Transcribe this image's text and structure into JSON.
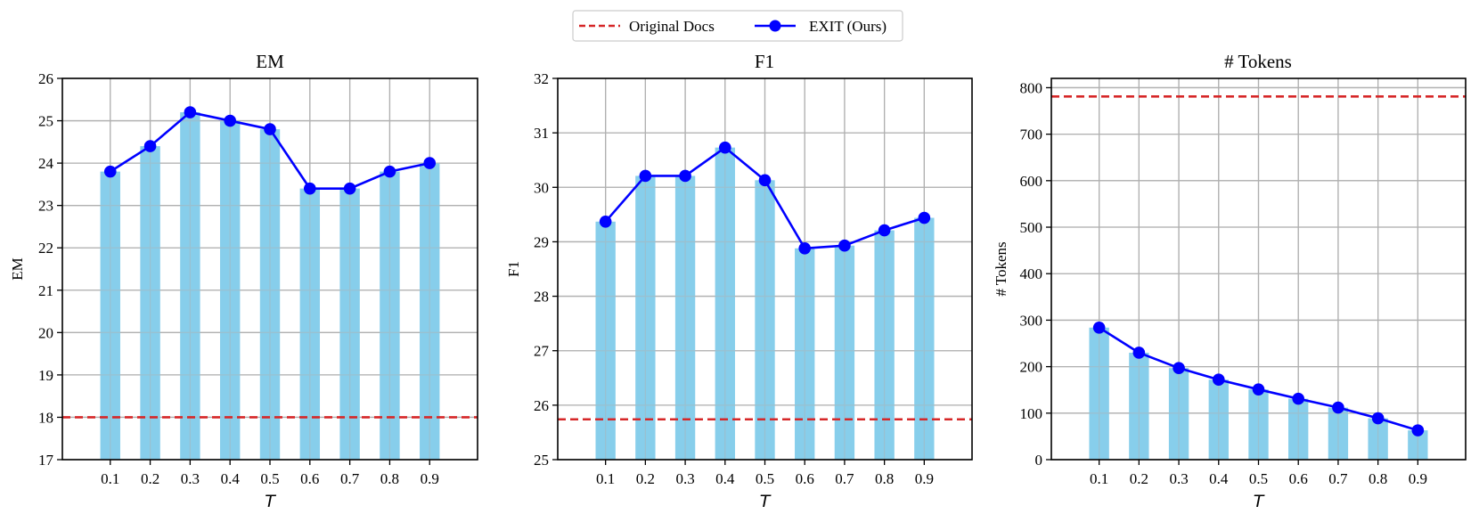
{
  "legend": {
    "entries": [
      {
        "label": "Original Docs",
        "style": "dashed",
        "color": "#d62728"
      },
      {
        "label": "EXIT (Ours)",
        "style": "line-marker",
        "color": "#0000ff"
      }
    ]
  },
  "colors": {
    "bar": "#87ceeb",
    "line": "#0000ff",
    "baseline": "#d62728",
    "grid": "#b0b0b0"
  },
  "chart_data": [
    {
      "type": "bar",
      "title": "EM",
      "xlabel": "T",
      "ylabel": "EM",
      "categories": [
        "0.1",
        "0.2",
        "0.3",
        "0.4",
        "0.5",
        "0.6",
        "0.7",
        "0.8",
        "0.9"
      ],
      "ylim": [
        17,
        26
      ],
      "yticks": [
        "17",
        "18",
        "19",
        "20",
        "21",
        "22",
        "23",
        "24",
        "25",
        "26"
      ],
      "grid": true,
      "series": [
        {
          "name": "EXIT (Ours)",
          "type": "bar+line",
          "values": [
            23.8,
            24.4,
            25.2,
            25.0,
            24.8,
            23.4,
            23.4,
            23.8,
            24.0
          ]
        },
        {
          "name": "Original Docs",
          "type": "hline",
          "value": 18.0
        }
      ]
    },
    {
      "type": "bar",
      "title": "F1",
      "xlabel": "T",
      "ylabel": "F1",
      "categories": [
        "0.1",
        "0.2",
        "0.3",
        "0.4",
        "0.5",
        "0.6",
        "0.7",
        "0.8",
        "0.9"
      ],
      "ylim": [
        25,
        32
      ],
      "yticks": [
        "25",
        "26",
        "27",
        "28",
        "29",
        "30",
        "31",
        "32"
      ],
      "grid": true,
      "series": [
        {
          "name": "EXIT (Ours)",
          "type": "bar+line",
          "values": [
            29.37,
            30.21,
            30.21,
            30.73,
            30.13,
            28.88,
            28.93,
            29.21,
            29.44
          ]
        },
        {
          "name": "Original Docs",
          "type": "hline",
          "value": 25.74
        }
      ]
    },
    {
      "type": "bar",
      "title": "# Tokens",
      "xlabel": "T",
      "ylabel": "# Tokens",
      "categories": [
        "0.1",
        "0.2",
        "0.3",
        "0.4",
        "0.5",
        "0.6",
        "0.7",
        "0.8",
        "0.9"
      ],
      "ylim": [
        0,
        820
      ],
      "yticks": [
        "0",
        "100",
        "200",
        "300",
        "400",
        "500",
        "600",
        "700",
        "800"
      ],
      "grid": true,
      "series": [
        {
          "name": "EXIT (Ours)",
          "type": "bar+line",
          "values": [
            284,
            230,
            197,
            172,
            151,
            131,
            112,
            89,
            63
          ]
        },
        {
          "name": "Original Docs",
          "type": "hline",
          "value": 781
        }
      ]
    }
  ]
}
